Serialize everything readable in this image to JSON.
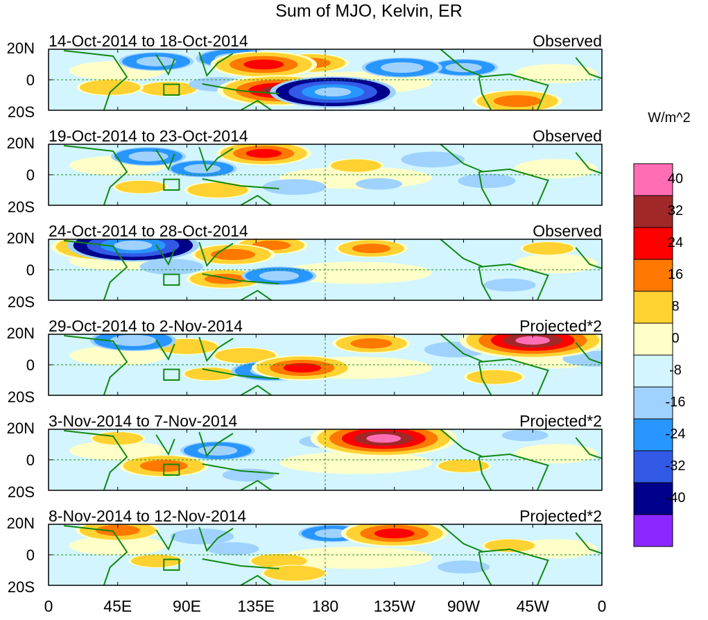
{
  "chart_data": {
    "type": "heatmap",
    "title": "Sum of MJO, Kelvin, ER",
    "xlabel": "",
    "ylabel": "",
    "x_ticks": [
      "0",
      "45E",
      "90E",
      "135E",
      "180",
      "135W",
      "90W",
      "45W",
      "0"
    ],
    "y_ticks": [
      "20N",
      "0",
      "20S"
    ],
    "xlim": [
      0,
      360
    ],
    "ylim": [
      -20,
      20
    ],
    "colorbar": {
      "unit": "W/m^2",
      "labels": [
        "40",
        "32",
        "24",
        "16",
        "8",
        "0",
        "-8",
        "-16",
        "-24",
        "-32",
        "-40"
      ],
      "colors": [
        "#ff6eb4",
        "#a02828",
        "#ff0000",
        "#ff7800",
        "#ffd232",
        "#ffffc8",
        "#d2f5ff",
        "#a0d2ff",
        "#2896ff",
        "#325ae6",
        "#00008c",
        "#8c28ff"
      ]
    },
    "panels": [
      {
        "period": "14-Oct-2014 to 18-Oct-2014",
        "label": "Observed",
        "anomalies": [
          {
            "lon": 70,
            "lat": 12,
            "v": -18
          },
          {
            "lon": 122,
            "lat": 14,
            "v": -20
          },
          {
            "lon": 140,
            "lat": 10,
            "v": 28
          },
          {
            "lon": 170,
            "lat": 11,
            "v": 18
          },
          {
            "lon": 150,
            "lat": -7,
            "v": 34
          },
          {
            "lon": 185,
            "lat": -8,
            "v": -36
          },
          {
            "lon": 40,
            "lat": -5,
            "v": 14
          },
          {
            "lon": 78,
            "lat": -6,
            "v": 12
          },
          {
            "lon": 230,
            "lat": 8,
            "v": -20
          },
          {
            "lon": 270,
            "lat": 8,
            "v": -16
          },
          {
            "lon": 305,
            "lat": -14,
            "v": 22
          },
          {
            "lon": 110,
            "lat": -3,
            "v": -12
          }
        ]
      },
      {
        "period": "19-Oct-2014 to 23-Oct-2014",
        "label": "Observed",
        "anomalies": [
          {
            "lon": 65,
            "lat": 12,
            "v": -18
          },
          {
            "lon": 140,
            "lat": 14,
            "v": 24
          },
          {
            "lon": 100,
            "lat": 4,
            "v": -16
          },
          {
            "lon": 110,
            "lat": -10,
            "v": 14
          },
          {
            "lon": 160,
            "lat": -8,
            "v": -14
          },
          {
            "lon": 200,
            "lat": 6,
            "v": 10
          },
          {
            "lon": 250,
            "lat": 10,
            "v": -14
          },
          {
            "lon": 285,
            "lat": -4,
            "v": -12
          },
          {
            "lon": 60,
            "lat": -8,
            "v": 10
          },
          {
            "lon": 215,
            "lat": -6,
            "v": -8
          }
        ]
      },
      {
        "period": "24-Oct-2014 to 28-Oct-2014",
        "label": "Observed",
        "anomalies": [
          {
            "lon": 55,
            "lat": 16,
            "v": -38
          },
          {
            "lon": 38,
            "lat": 15,
            "v": 30
          },
          {
            "lon": 120,
            "lat": 10,
            "v": 20
          },
          {
            "lon": 145,
            "lat": 16,
            "v": 16
          },
          {
            "lon": 115,
            "lat": -6,
            "v": 18
          },
          {
            "lon": 150,
            "lat": -4,
            "v": -18
          },
          {
            "lon": 210,
            "lat": 14,
            "v": 16
          },
          {
            "lon": 80,
            "lat": 2,
            "v": -14
          },
          {
            "lon": 300,
            "lat": -10,
            "v": -10
          },
          {
            "lon": 325,
            "lat": 14,
            "v": 10
          }
        ]
      },
      {
        "period": "29-Oct-2014 to 2-Nov-2014",
        "label": "Projected*2",
        "anomalies": [
          {
            "lon": 55,
            "lat": 16,
            "v": -22
          },
          {
            "lon": 90,
            "lat": 12,
            "v": 14
          },
          {
            "lon": 128,
            "lat": 6,
            "v": 14
          },
          {
            "lon": 145,
            "lat": -4,
            "v": -20
          },
          {
            "lon": 165,
            "lat": -2,
            "v": 26
          },
          {
            "lon": 210,
            "lat": 14,
            "v": 18
          },
          {
            "lon": 315,
            "lat": 16,
            "v": 42
          },
          {
            "lon": 265,
            "lat": 10,
            "v": -14
          },
          {
            "lon": 105,
            "lat": -6,
            "v": 10
          },
          {
            "lon": 290,
            "lat": -8,
            "v": 12
          },
          {
            "lon": 355,
            "lat": 4,
            "v": -14
          }
        ]
      },
      {
        "period": "3-Nov-2014 to 7-Nov-2014",
        "label": "Projected*2",
        "anomalies": [
          {
            "lon": 218,
            "lat": 14,
            "v": 42
          },
          {
            "lon": 75,
            "lat": -4,
            "v": 22
          },
          {
            "lon": 110,
            "lat": 6,
            "v": -18
          },
          {
            "lon": 180,
            "lat": 12,
            "v": -10
          },
          {
            "lon": 45,
            "lat": 14,
            "v": 10
          },
          {
            "lon": 270,
            "lat": -4,
            "v": 10
          },
          {
            "lon": 130,
            "lat": -10,
            "v": -10
          },
          {
            "lon": 310,
            "lat": 16,
            "v": -8
          }
        ]
      },
      {
        "period": "8-Nov-2014 to 12-Nov-2014",
        "label": "Projected*2",
        "anomalies": [
          {
            "lon": 45,
            "lat": 16,
            "v": 20
          },
          {
            "lon": 100,
            "lat": 12,
            "v": -14
          },
          {
            "lon": 185,
            "lat": 14,
            "v": -16
          },
          {
            "lon": 225,
            "lat": 14,
            "v": 28
          },
          {
            "lon": 70,
            "lat": -4,
            "v": 10
          },
          {
            "lon": 150,
            "lat": -4,
            "v": 12
          },
          {
            "lon": 160,
            "lat": -12,
            "v": 14
          },
          {
            "lon": 270,
            "lat": -8,
            "v": -10
          },
          {
            "lon": 300,
            "lat": 6,
            "v": 10
          },
          {
            "lon": 120,
            "lat": 4,
            "v": -10
          }
        ]
      }
    ]
  }
}
